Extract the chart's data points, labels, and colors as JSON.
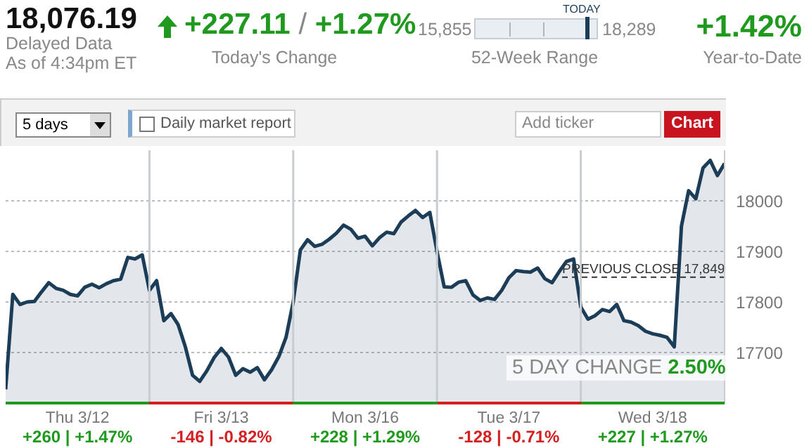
{
  "chart_data": {
    "type": "area",
    "title": "18,076.19",
    "categories": [
      null,
      null,
      null,
      null,
      null,
      null,
      null,
      null,
      null,
      null,
      "Thu 3/12",
      null,
      null,
      null,
      null,
      null,
      null,
      null,
      null,
      null,
      null,
      null,
      null,
      null,
      null,
      null,
      null,
      null,
      null,
      null,
      "Fri 3/13",
      null,
      null,
      null,
      null,
      null,
      null,
      null,
      null,
      null,
      null,
      null,
      null,
      null,
      null,
      null,
      null,
      null,
      null,
      null,
      "Mon 3/16",
      null,
      null,
      null,
      null,
      null,
      null,
      null,
      null,
      null,
      null,
      null,
      null,
      null,
      null,
      null,
      null,
      null,
      null,
      null,
      "Tue 3/17",
      null,
      null,
      null,
      null,
      null,
      null,
      null,
      null,
      null,
      null,
      null,
      null,
      null,
      null,
      null,
      null,
      null,
      null,
      null,
      "Wed 3/18",
      null,
      null,
      null,
      null,
      null,
      null,
      null,
      null,
      null,
      null
    ],
    "ylim": [
      17600,
      18100
    ],
    "yticks": [
      17700,
      17800,
      17900,
      18000
    ],
    "grid": "y",
    "line_style": "solid",
    "series": [
      {
        "color": "#1c3d57",
        "values": [
          17627,
          17815,
          17795,
          17800,
          17801,
          17820,
          17838,
          17827,
          17823,
          17815,
          17812,
          17829,
          17835,
          17828,
          17836,
          17842,
          17845,
          17888,
          17885,
          17893,
          17823,
          17842,
          17763,
          17777,
          17755,
          17711,
          17655,
          17643,
          17664,
          17690,
          17708,
          17691,
          17655,
          17668,
          17661,
          17670,
          17646,
          17666,
          17692,
          17730,
          17800,
          17903,
          17923,
          17910,
          17914,
          17924,
          17936,
          17952,
          17944,
          17926,
          17930,
          17911,
          17927,
          17938,
          17935,
          17958,
          17970,
          17981,
          17967,
          17977,
          17900,
          17830,
          17829,
          17839,
          17842,
          17814,
          17803,
          17808,
          17805,
          17823,
          17848,
          17862,
          17860,
          17859,
          17867,
          17846,
          17838,
          17860,
          17880,
          17885,
          17790,
          17766,
          17773,
          17785,
          17781,
          17795,
          17763,
          17760,
          17753,
          17742,
          17737,
          17734,
          17730,
          17711,
          17950,
          18020,
          18004,
          18065,
          18080,
          18050,
          18074
        ]
      }
    ],
    "ref_lines": [
      {
        "axis": "y",
        "value": 17849,
        "label": "PREVIOUS CLOSE 17,849",
        "color": "#333333",
        "line_style": "dashed"
      }
    ],
    "annotations": [
      "Delayed Data",
      "As of 4:34pm ET",
      "+227.11",
      "/",
      "+1.27%",
      "Today's Change",
      "15,855",
      "18,289",
      "TODAY",
      "52-Week Range",
      "+1.42%",
      "Year-to-Date",
      "5 days",
      "Daily market report",
      "Add ticker",
      "Chart",
      "5 DAY CHANGE",
      "2.50%",
      "+260 | +1.47%",
      "-146 | -0.82%",
      "+228 | +1.29%",
      "-128 | -0.71%",
      "+227 | +1.27%"
    ]
  }
}
